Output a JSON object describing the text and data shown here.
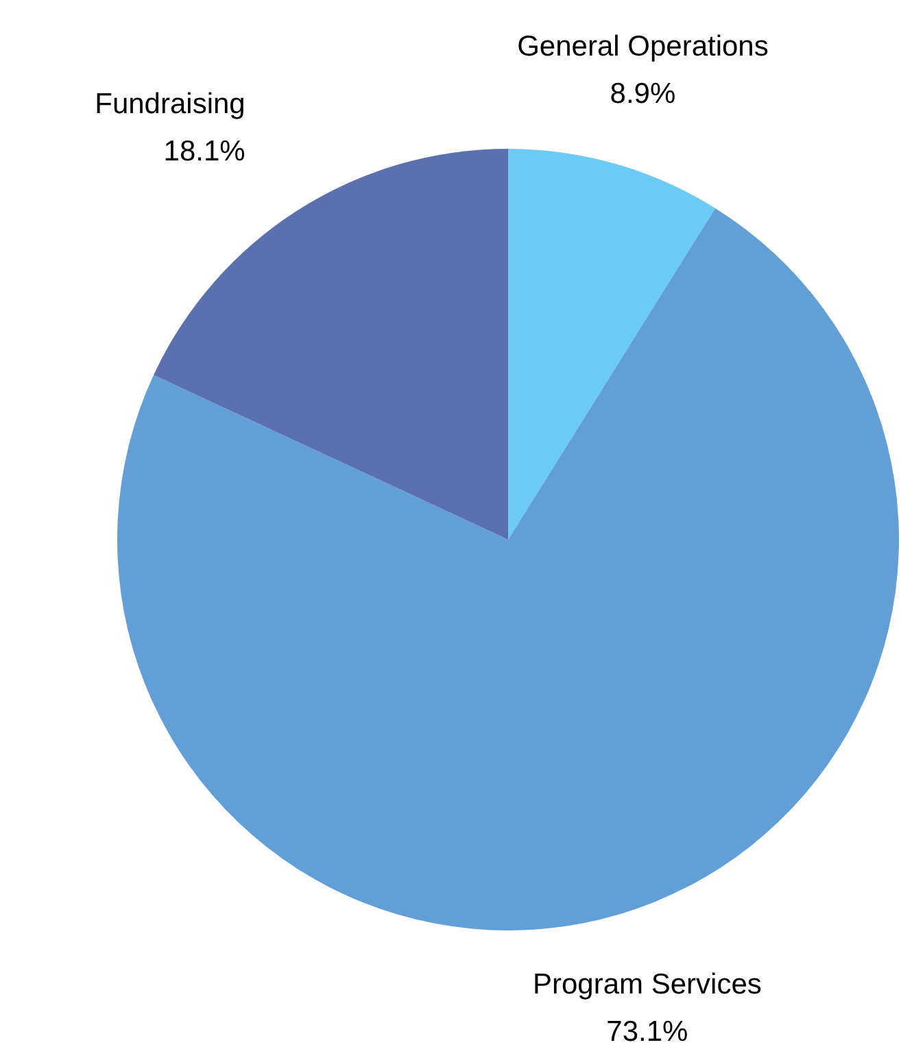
{
  "chart_data": {
    "type": "pie",
    "categories": [
      "General Operations",
      "Program Services",
      "Fundraising"
    ],
    "values": [
      8.9,
      73.1,
      18.1
    ],
    "colors": [
      "#6bcbf5",
      "#619fd6",
      "#5b70ae"
    ],
    "value_labels": [
      "8.9%",
      "73.1%",
      "18.1%"
    ],
    "legend": false
  }
}
